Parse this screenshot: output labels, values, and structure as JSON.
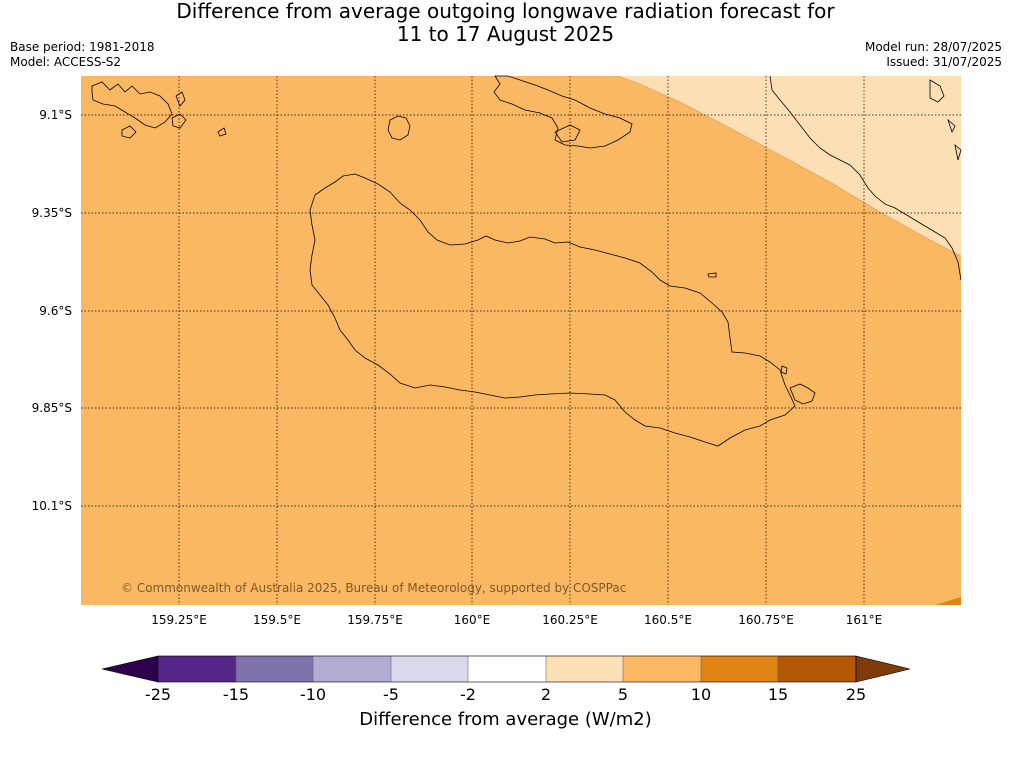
{
  "header": {
    "title_line1": "Difference from average outgoing longwave radiation forecast for",
    "title_line2": "11 to 17 August 2025",
    "base_period": "Base period: 1981-2018",
    "model": "Model: ACCESS-S2",
    "model_run": "Model run: 28/07/2025",
    "issued": "Issued: 31/07/2025"
  },
  "map": {
    "x_ticks": [
      "159.25°E",
      "159.5°E",
      "159.75°E",
      "160°E",
      "160.25°E",
      "160.5°E",
      "160.75°E",
      "161°E"
    ],
    "y_ticks": [
      "9.1°S",
      "9.35°S",
      "9.6°S",
      "9.85°S",
      "10.1°S"
    ],
    "copyright": "© Commonwealth of Australia 2025, Bureau of Meteorology, supported by COSPPac",
    "colors": {
      "range_5_10": "#fbb862",
      "range_2_5": "#fddfb5",
      "range_10_15": "#e08214"
    }
  },
  "colorbar": {
    "labels": [
      "-25",
      "-15",
      "-10",
      "-5",
      "-2",
      "2",
      "5",
      "10",
      "15",
      "25"
    ],
    "title": "Difference from average (W/m2)",
    "colors": [
      "#542788",
      "#8073ac",
      "#b2abd2",
      "#d8daeb",
      "#ffffff",
      "#fee0b6",
      "#fdb863",
      "#e08214",
      "#b35806"
    ],
    "under_color": "#2d004b",
    "over_color": "#7f3b08"
  }
}
